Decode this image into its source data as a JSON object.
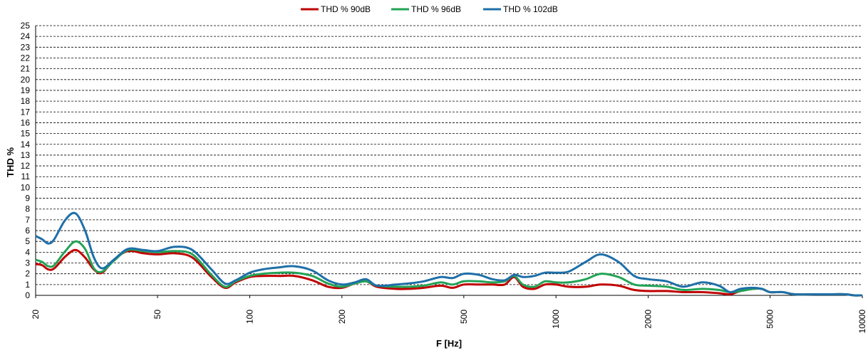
{
  "chart_data": {
    "type": "line",
    "xlabel": "F [Hz]",
    "ylabel": "THD %",
    "x_scale": "log",
    "xlim": [
      20,
      10000
    ],
    "ylim": [
      0,
      25
    ],
    "x_tick_labels": [
      "20",
      "50",
      "100",
      "200",
      "500",
      "1000",
      "2000",
      "5000",
      "10000"
    ],
    "y_tick_labels": [
      "0",
      "1",
      "2",
      "3",
      "4",
      "5",
      "6",
      "7",
      "8",
      "9",
      "10",
      "11",
      "12",
      "13",
      "14",
      "15",
      "16",
      "17",
      "18",
      "19",
      "20",
      "21",
      "22",
      "23",
      "24",
      "25"
    ],
    "grid": "horizontal dashed",
    "legend_position": "top-center",
    "series": [
      {
        "name": "THD % 90dB",
        "color": "#c00000",
        "points": [
          [
            20,
            2.9
          ],
          [
            21,
            2.8
          ],
          [
            22,
            2.4
          ],
          [
            23,
            2.5
          ],
          [
            25,
            3.6
          ],
          [
            27,
            4.2
          ],
          [
            29,
            3.5
          ],
          [
            31,
            2.4
          ],
          [
            33,
            2.1
          ],
          [
            36,
            3.3
          ],
          [
            40,
            4.1
          ],
          [
            45,
            3.9
          ],
          [
            50,
            3.8
          ],
          [
            57,
            3.9
          ],
          [
            65,
            3.5
          ],
          [
            75,
            1.7
          ],
          [
            83,
            0.7
          ],
          [
            90,
            1.2
          ],
          [
            100,
            1.7
          ],
          [
            110,
            1.8
          ],
          [
            125,
            1.8
          ],
          [
            140,
            1.8
          ],
          [
            160,
            1.4
          ],
          [
            180,
            0.8
          ],
          [
            200,
            0.7
          ],
          [
            220,
            1.1
          ],
          [
            240,
            1.3
          ],
          [
            260,
            0.8
          ],
          [
            300,
            0.6
          ],
          [
            330,
            0.6
          ],
          [
            370,
            0.7
          ],
          [
            420,
            0.9
          ],
          [
            460,
            0.7
          ],
          [
            500,
            1.0
          ],
          [
            560,
            1.0
          ],
          [
            620,
            1.0
          ],
          [
            680,
            1.0
          ],
          [
            730,
            1.7
          ],
          [
            780,
            0.8
          ],
          [
            850,
            0.6
          ],
          [
            920,
            1.0
          ],
          [
            1000,
            1.0
          ],
          [
            1100,
            0.8
          ],
          [
            1250,
            0.8
          ],
          [
            1400,
            1.0
          ],
          [
            1600,
            0.9
          ],
          [
            1800,
            0.5
          ],
          [
            2000,
            0.4
          ],
          [
            2300,
            0.4
          ],
          [
            2600,
            0.3
          ],
          [
            3000,
            0.3
          ],
          [
            3400,
            0.2
          ],
          [
            3700,
            0.1
          ],
          [
            4000,
            0.4
          ],
          [
            4400,
            0.6
          ],
          [
            4700,
            0.6
          ],
          [
            5000,
            0.3
          ],
          [
            5500,
            0.3
          ],
          [
            6000,
            0.1
          ],
          [
            7000,
            0.1
          ],
          [
            8000,
            0.1
          ],
          [
            8800,
            0.1
          ],
          [
            9400,
            0.0
          ],
          [
            10000,
            0.0
          ]
        ]
      },
      {
        "name": "THD % 96dB",
        "color": "#22a356",
        "points": [
          [
            20,
            3.3
          ],
          [
            21,
            3.1
          ],
          [
            22,
            2.7
          ],
          [
            23,
            2.8
          ],
          [
            25,
            4.1
          ],
          [
            27,
            5.0
          ],
          [
            29,
            4.3
          ],
          [
            31,
            2.5
          ],
          [
            33,
            2.2
          ],
          [
            36,
            3.2
          ],
          [
            40,
            4.2
          ],
          [
            45,
            4.1
          ],
          [
            50,
            4.0
          ],
          [
            57,
            4.1
          ],
          [
            65,
            3.8
          ],
          [
            75,
            1.9
          ],
          [
            83,
            0.8
          ],
          [
            90,
            1.3
          ],
          [
            100,
            1.8
          ],
          [
            110,
            2.0
          ],
          [
            125,
            2.1
          ],
          [
            140,
            2.1
          ],
          [
            160,
            1.8
          ],
          [
            180,
            1.1
          ],
          [
            200,
            0.8
          ],
          [
            220,
            1.1
          ],
          [
            240,
            1.3
          ],
          [
            260,
            0.9
          ],
          [
            300,
            0.8
          ],
          [
            330,
            0.8
          ],
          [
            370,
            0.9
          ],
          [
            420,
            1.2
          ],
          [
            460,
            1.0
          ],
          [
            500,
            1.3
          ],
          [
            560,
            1.3
          ],
          [
            620,
            1.2
          ],
          [
            680,
            1.3
          ],
          [
            730,
            1.8
          ],
          [
            780,
            1.0
          ],
          [
            850,
            0.8
          ],
          [
            920,
            1.3
          ],
          [
            1000,
            1.2
          ],
          [
            1100,
            1.2
          ],
          [
            1250,
            1.5
          ],
          [
            1400,
            2.0
          ],
          [
            1600,
            1.7
          ],
          [
            1800,
            1.0
          ],
          [
            2000,
            0.9
          ],
          [
            2300,
            0.8
          ],
          [
            2600,
            0.5
          ],
          [
            3000,
            0.6
          ],
          [
            3400,
            0.5
          ],
          [
            3700,
            0.3
          ],
          [
            4000,
            0.4
          ],
          [
            4400,
            0.6
          ],
          [
            4700,
            0.6
          ],
          [
            5000,
            0.3
          ],
          [
            5500,
            0.3
          ],
          [
            6000,
            0.1
          ],
          [
            7000,
            0.1
          ],
          [
            8000,
            0.1
          ],
          [
            8800,
            0.1
          ],
          [
            9400,
            0.0
          ],
          [
            10000,
            0.0
          ]
        ]
      },
      {
        "name": "THD % 102dB",
        "color": "#1f6fa8",
        "points": [
          [
            20,
            5.5
          ],
          [
            21,
            5.2
          ],
          [
            22,
            4.8
          ],
          [
            23,
            5.2
          ],
          [
            25,
            7.0
          ],
          [
            27,
            7.6
          ],
          [
            29,
            6.0
          ],
          [
            31,
            3.5
          ],
          [
            33,
            2.5
          ],
          [
            36,
            3.3
          ],
          [
            40,
            4.3
          ],
          [
            45,
            4.2
          ],
          [
            50,
            4.1
          ],
          [
            57,
            4.5
          ],
          [
            65,
            4.2
          ],
          [
            75,
            2.4
          ],
          [
            83,
            1.1
          ],
          [
            90,
            1.4
          ],
          [
            100,
            2.1
          ],
          [
            110,
            2.4
          ],
          [
            125,
            2.6
          ],
          [
            140,
            2.7
          ],
          [
            160,
            2.3
          ],
          [
            180,
            1.4
          ],
          [
            200,
            1.0
          ],
          [
            220,
            1.2
          ],
          [
            240,
            1.5
          ],
          [
            260,
            0.9
          ],
          [
            300,
            1.0
          ],
          [
            330,
            1.1
          ],
          [
            370,
            1.3
          ],
          [
            420,
            1.7
          ],
          [
            460,
            1.6
          ],
          [
            500,
            2.0
          ],
          [
            560,
            1.9
          ],
          [
            620,
            1.5
          ],
          [
            680,
            1.4
          ],
          [
            730,
            1.9
          ],
          [
            780,
            1.7
          ],
          [
            850,
            1.8
          ],
          [
            920,
            2.1
          ],
          [
            1000,
            2.1
          ],
          [
            1100,
            2.2
          ],
          [
            1250,
            3.1
          ],
          [
            1400,
            3.8
          ],
          [
            1600,
            3.1
          ],
          [
            1800,
            1.8
          ],
          [
            2000,
            1.5
          ],
          [
            2300,
            1.3
          ],
          [
            2600,
            0.8
          ],
          [
            3000,
            1.2
          ],
          [
            3400,
            0.9
          ],
          [
            3700,
            0.3
          ],
          [
            4000,
            0.6
          ],
          [
            4400,
            0.7
          ],
          [
            4700,
            0.6
          ],
          [
            5000,
            0.3
          ],
          [
            5500,
            0.3
          ],
          [
            6000,
            0.1
          ],
          [
            7000,
            0.1
          ],
          [
            8000,
            0.1
          ],
          [
            8800,
            0.1
          ],
          [
            9400,
            0.0
          ],
          [
            10000,
            0.0
          ]
        ]
      }
    ]
  }
}
